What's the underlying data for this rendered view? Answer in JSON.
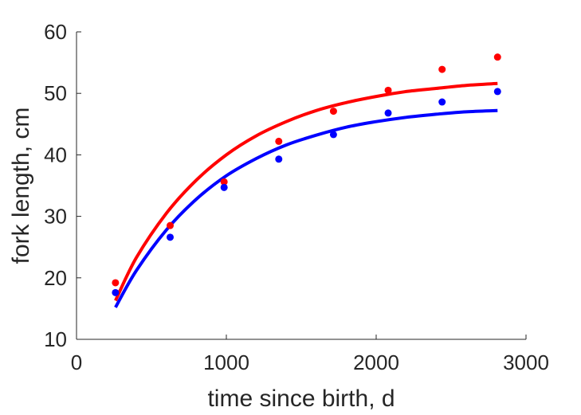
{
  "chart_data": {
    "type": "scatter",
    "title": "",
    "xlabel": "time since birth, d",
    "ylabel": "fork length, cm",
    "xlim": [
      0,
      3000
    ],
    "ylim": [
      10,
      60
    ],
    "xticks": [
      "0",
      "1000",
      "2000",
      "3000"
    ],
    "yticks": [
      "10",
      "20",
      "30",
      "40",
      "50",
      "60"
    ],
    "grid": false,
    "legend": "none",
    "series": [
      {
        "color": "#ff0000",
        "points": {
          "x": [
            260,
            625,
            985,
            1350,
            1715,
            2080,
            2440,
            2810
          ],
          "y": [
            19.2,
            28.5,
            35.6,
            42.2,
            47.1,
            50.5,
            53.9,
            55.9
          ]
        },
        "fit_curve": {
          "x": [
            260,
            400,
            600,
            800,
            1000,
            1200,
            1400,
            1600,
            1800,
            2000,
            2200,
            2400,
            2600,
            2810
          ],
          "y": [
            16.3,
            23.3,
            30.5,
            35.9,
            40.0,
            43.1,
            45.4,
            47.2,
            48.5,
            49.5,
            50.3,
            50.8,
            51.3,
            51.6
          ]
        }
      },
      {
        "color": "#0000ff",
        "points": {
          "x": [
            260,
            625,
            985,
            1350,
            1715,
            2080,
            2440,
            2810
          ],
          "y": [
            17.6,
            26.6,
            34.7,
            39.3,
            43.3,
            46.8,
            48.6,
            50.3
          ]
        },
        "fit_curve": {
          "x": [
            260,
            400,
            600,
            800,
            1000,
            1200,
            1400,
            1600,
            1800,
            2000,
            2200,
            2400,
            2600,
            2810
          ],
          "y": [
            15.2,
            21.2,
            27.8,
            32.8,
            36.6,
            39.4,
            41.6,
            43.2,
            44.5,
            45.4,
            46.1,
            46.6,
            47.0,
            47.2
          ]
        }
      }
    ]
  }
}
